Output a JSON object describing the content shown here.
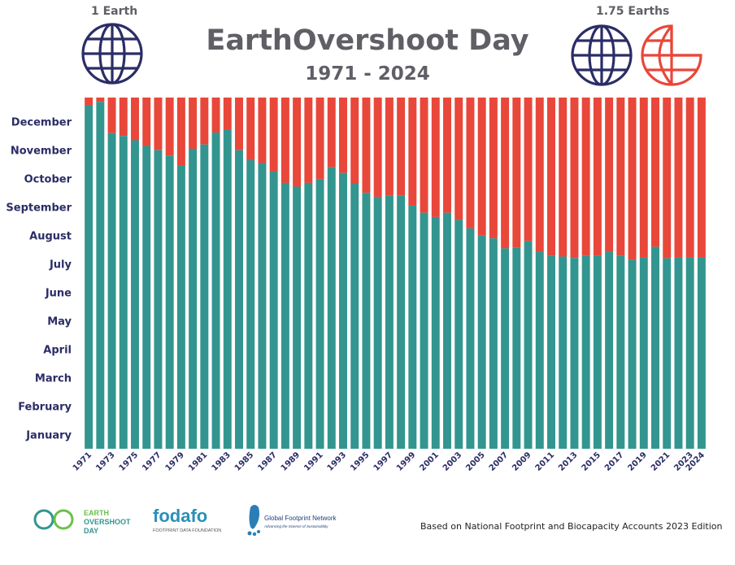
{
  "header": {
    "title": "EarthOvershoot Day",
    "subtitle": "1971 - 2024",
    "left_globe_label": "1 Earth",
    "right_globe_label": "1.75 Earths"
  },
  "footer": {
    "source_note": "Based on National Footprint and Biocapacity Accounts 2023 Edition",
    "logos": {
      "earth_overshoot_day": [
        "EARTH",
        "OVERSHOOT",
        "DAY"
      ],
      "fodafo": {
        "name": "fodafo",
        "tagline": "FOOTPRINT DATA FOUNDATION"
      },
      "gfn": {
        "name": "Global Footprint Network",
        "tagline": "Advancing the Science of Sustainability"
      }
    }
  },
  "colors": {
    "before_overshoot": "#33958f",
    "after_overshoot": "#e8473a",
    "navy": "#2b2d66",
    "title_gray": "#5f5f66"
  },
  "chart_data": {
    "type": "bar",
    "stacked": true,
    "x": [
      1971,
      1972,
      1973,
      1974,
      1975,
      1976,
      1977,
      1978,
      1979,
      1980,
      1981,
      1982,
      1983,
      1984,
      1985,
      1986,
      1987,
      1988,
      1989,
      1990,
      1991,
      1992,
      1993,
      1994,
      1995,
      1996,
      1997,
      1998,
      1999,
      2000,
      2001,
      2002,
      2003,
      2004,
      2005,
      2006,
      2007,
      2008,
      2009,
      2010,
      2011,
      2012,
      2013,
      2014,
      2015,
      2016,
      2017,
      2018,
      2019,
      2020,
      2021,
      2022,
      2023,
      2024
    ],
    "x_tick_labels": [
      "1971",
      "1973",
      "1975",
      "1977",
      "1979",
      "1981",
      "1983",
      "1985",
      "1987",
      "1989",
      "1991",
      "1993",
      "1995",
      "1997",
      "1999",
      "2001",
      "2003",
      "2005",
      "2007",
      "2009",
      "2011",
      "2013",
      "2015",
      "2017",
      "2019",
      "2021",
      "2023",
      "2024"
    ],
    "y_categories": [
      "January",
      "February",
      "March",
      "April",
      "May",
      "June",
      "July",
      "August",
      "September",
      "October",
      "November",
      "December"
    ],
    "values_month": [
      12.08,
      12.2,
      11.1,
      11.0,
      10.85,
      10.65,
      10.5,
      10.3,
      9.95,
      10.55,
      10.7,
      11.12,
      11.22,
      10.5,
      10.15,
      10.05,
      9.75,
      9.35,
      9.22,
      9.35,
      9.48,
      9.9,
      9.7,
      9.32,
      9.0,
      8.85,
      8.9,
      8.9,
      8.55,
      8.3,
      8.15,
      8.3,
      8.05,
      7.75,
      7.5,
      7.4,
      7.05,
      7.08,
      7.3,
      6.92,
      6.78,
      6.76,
      6.71,
      6.78,
      6.8,
      6.92,
      6.78,
      6.65,
      6.72,
      7.1,
      6.7,
      6.72,
      6.72,
      6.72
    ],
    "series": [
      {
        "name": "",
        "color": "#33958f"
      },
      {
        "name": "",
        "color": "#e8473a"
      }
    ],
    "ylim": [
      0,
      12.35
    ],
    "title": "EarthOvershoot Day",
    "subtitle": "1971 - 2024"
  }
}
